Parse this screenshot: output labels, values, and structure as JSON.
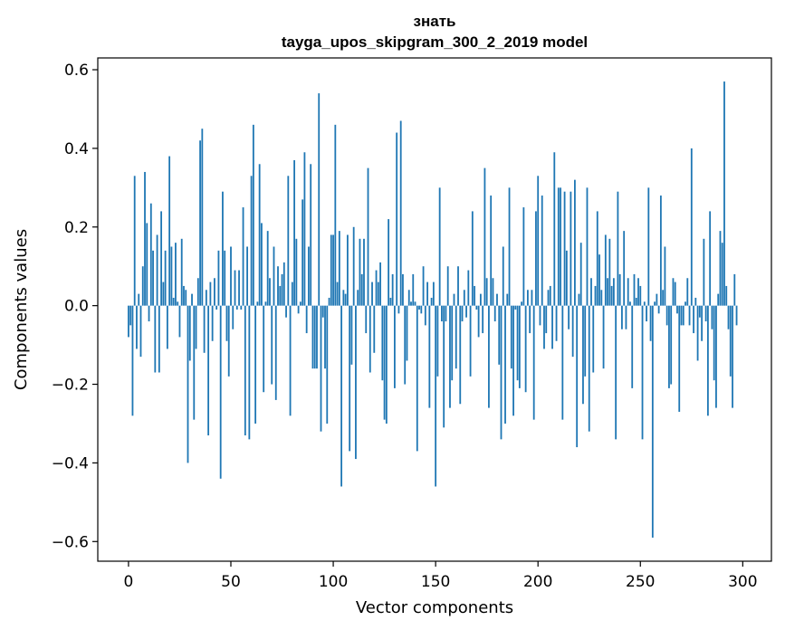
{
  "chart_data": {
    "type": "bar",
    "title": "знать",
    "subtitle": "tayga_upos_skipgram_300_2_2019 model",
    "xlabel": "Vector components",
    "ylabel": "Components values",
    "xlim": [
      -15,
      314
    ],
    "ylim": [
      -0.65,
      0.63
    ],
    "xticks": [
      0,
      50,
      100,
      150,
      200,
      250,
      300
    ],
    "yticks": [
      -0.6,
      -0.4,
      -0.2,
      0.0,
      0.2,
      0.4,
      0.6
    ],
    "ytick_labels": [
      "−0.6",
      "−0.4",
      "−0.2",
      "0.0",
      "0.2",
      "0.4",
      "0.6"
    ],
    "color": "#1f77b4",
    "values": [
      -0.08,
      -0.05,
      -0.28,
      0.33,
      -0.11,
      0.03,
      -0.13,
      0.1,
      0.34,
      0.21,
      -0.04,
      0.26,
      0.14,
      -0.17,
      0.18,
      -0.17,
      0.24,
      0.06,
      0.14,
      -0.11,
      0.38,
      0.15,
      0.02,
      0.16,
      0.01,
      -0.08,
      0.17,
      0.05,
      0.04,
      -0.4,
      -0.14,
      0.03,
      -0.29,
      -0.11,
      0.07,
      0.42,
      0.45,
      -0.12,
      0.04,
      -0.33,
      0.06,
      -0.09,
      0.07,
      -0.01,
      0.14,
      -0.44,
      0.29,
      0.14,
      -0.09,
      -0.18,
      0.15,
      -0.06,
      0.09,
      -0.01,
      0.09,
      -0.01,
      0.25,
      -0.33,
      0.15,
      -0.34,
      0.33,
      0.46,
      -0.3,
      0.01,
      0.36,
      0.21,
      -0.22,
      0.01,
      0.19,
      0.07,
      -0.2,
      0.15,
      -0.24,
      0.1,
      0.05,
      0.08,
      0.11,
      -0.03,
      0.33,
      -0.28,
      0.06,
      0.37,
      0.17,
      -0.02,
      0.01,
      0.27,
      0.39,
      -0.07,
      0.15,
      0.36,
      -0.16,
      -0.16,
      -0.16,
      0.54,
      -0.32,
      -0.03,
      -0.16,
      -0.3,
      0.02,
      0.18,
      0.18,
      0.46,
      0.06,
      0.19,
      -0.46,
      0.04,
      0.03,
      0.18,
      -0.37,
      -0.15,
      0.2,
      -0.39,
      0.04,
      0.17,
      0.08,
      0.17,
      -0.07,
      0.35,
      -0.17,
      0.06,
      -0.12,
      0.09,
      0.06,
      0.11,
      -0.19,
      -0.29,
      -0.3,
      0.22,
      0.02,
      0.08,
      -0.21,
      0.44,
      -0.02,
      0.47,
      0.08,
      -0.2,
      -0.14,
      0.04,
      0.01,
      0.08,
      0.01,
      -0.37,
      -0.01,
      -0.02,
      0.1,
      -0.05,
      0.06,
      -0.26,
      0.02,
      0.06,
      -0.46,
      -0.18,
      0.3,
      -0.04,
      -0.31,
      -0.04,
      0.1,
      -0.26,
      -0.19,
      0.03,
      -0.16,
      0.1,
      -0.25,
      -0.04,
      0.04,
      -0.03,
      0.09,
      -0.18,
      0.24,
      0.05,
      -0.01,
      -0.08,
      0.03,
      -0.07,
      0.35,
      0.07,
      -0.26,
      0.28,
      0.07,
      -0.04,
      0.03,
      -0.15,
      -0.34,
      0.15,
      -0.3,
      0.03,
      0.3,
      -0.16,
      -0.28,
      -0.01,
      -0.19,
      -0.21,
      0.01,
      0.25,
      -0.22,
      0.04,
      -0.07,
      0.04,
      -0.29,
      0.24,
      0.33,
      -0.05,
      0.28,
      -0.11,
      -0.07,
      0.04,
      0.05,
      -0.11,
      0.39,
      -0.09,
      0.3,
      0.3,
      -0.29,
      0.29,
      0.14,
      -0.06,
      0.29,
      -0.13,
      0.32,
      -0.36,
      0.03,
      0.16,
      -0.25,
      -0.18,
      0.3,
      -0.32,
      0.07,
      -0.17,
      0.05,
      0.24,
      0.13,
      0.04,
      -0.16,
      0.18,
      0.07,
      0.17,
      0.05,
      0.07,
      -0.34,
      0.29,
      0.08,
      -0.06,
      0.19,
      -0.06,
      0.07,
      0.01,
      -0.21,
      0.08,
      0.02,
      0.07,
      0.05,
      -0.34,
      0.01,
      -0.04,
      0.3,
      -0.09,
      -0.59,
      0.01,
      0.03,
      -0.02,
      0.28,
      0.04,
      0.15,
      -0.05,
      -0.21,
      -0.2,
      0.07,
      0.06,
      -0.02,
      -0.27,
      -0.05,
      -0.05,
      0.01,
      0.07,
      -0.05,
      0.4,
      -0.07,
      0.02,
      -0.14,
      -0.03,
      -0.09,
      0.17,
      -0.04,
      -0.28,
      0.24,
      -0.06,
      -0.19,
      -0.26,
      0.03,
      0.19,
      0.16,
      0.57,
      0.05,
      -0.06,
      -0.18,
      -0.26,
      0.08,
      -0.05
    ]
  }
}
